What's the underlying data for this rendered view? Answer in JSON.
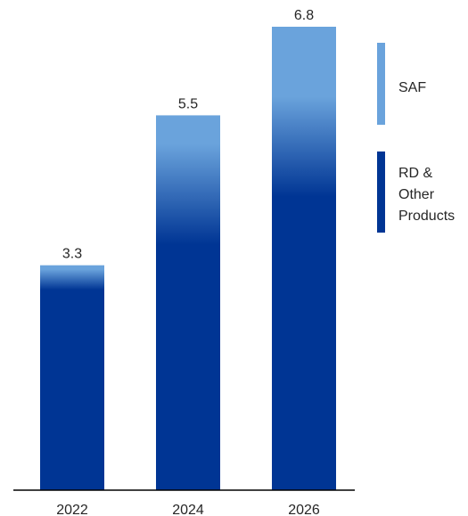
{
  "chart_data": {
    "type": "bar",
    "stacked": true,
    "categories": [
      "2022",
      "2024",
      "2026"
    ],
    "totals": [
      3.3,
      5.5,
      6.8
    ],
    "series": [
      {
        "name": "SAF",
        "values": [
          0.3,
          1.6,
          2.2
        ],
        "color": "#6aa3dc"
      },
      {
        "name": "RD & Other Products",
        "values": [
          3.0,
          3.9,
          4.6
        ],
        "color": "#003594"
      }
    ],
    "legend": {
      "position": "right",
      "items": [
        {
          "lines": [
            "SAF"
          ],
          "color": "#6aa3dc"
        },
        {
          "lines": [
            "RD &",
            "Other",
            "Products"
          ],
          "color": "#003594"
        }
      ]
    },
    "ylim": [
      0,
      6.8
    ],
    "grid": false
  }
}
